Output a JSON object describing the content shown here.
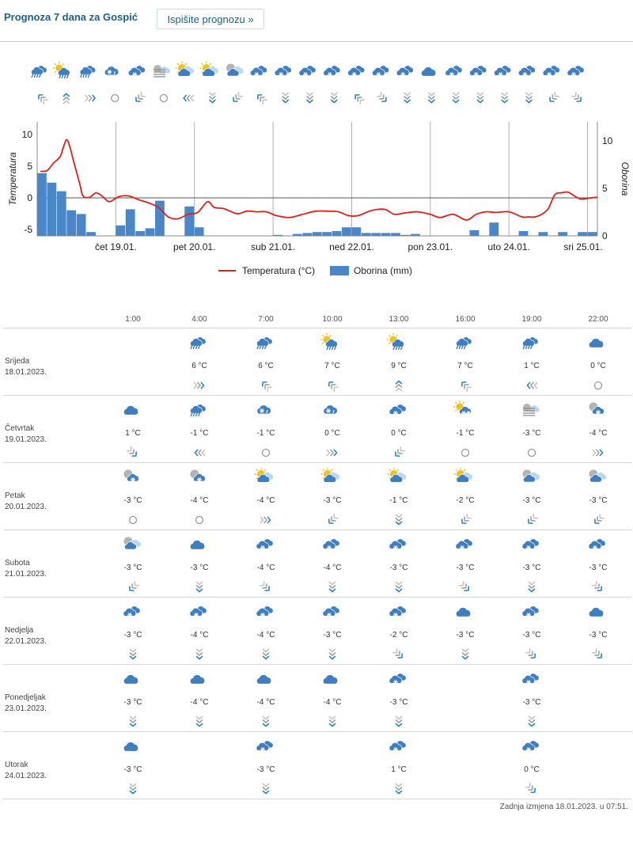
{
  "header": {
    "title": "Prognoza 7 dana za Gospić",
    "button_label": "Ispišite prognozu »"
  },
  "colors": {
    "temperature_line": "#e0201c",
    "precip_bar": "#4a87c8",
    "icon_blue": "#3f7fc1",
    "sun": "#f2c21a",
    "title_blue": "#1d5f8a"
  },
  "strip": {
    "icons": [
      "rain",
      "sun-rain",
      "rain",
      "snow-rain",
      "cloud-snow",
      "fog",
      "sun-cloud",
      "sun-cloud",
      "cloud-cloud",
      "cloud-snow",
      "cloud-snow",
      "cloud-snow",
      "cloud-snow",
      "cloud-snow",
      "cloud-snow",
      "cloud-snow",
      "cloud",
      "cloud-snow",
      "cloud-snow",
      "cloud-snow",
      "cloud-snow",
      "cloud-snow",
      "cloud-snow"
    ],
    "wind": [
      "sw",
      "s",
      "e",
      "calm",
      "nw",
      "calm",
      "w",
      "n",
      "nw",
      "sw",
      "n",
      "n",
      "n",
      "sw",
      "ne",
      "n",
      "n",
      "n",
      "n",
      "n",
      "n",
      "nw",
      "ne"
    ]
  },
  "chart_data": {
    "type": "line",
    "x_labels": [
      "čet 19.01.",
      "pet 20.01.",
      "sub 21.01.",
      "ned 22.01.",
      "pon 23.01.",
      "uto 24.01.",
      "sri 25.01."
    ],
    "ylabel": "Temperatura",
    "y2label": "Oborina",
    "ylim": [
      -6,
      12
    ],
    "y_ticks": [
      10,
      5,
      0,
      -5
    ],
    "y2lim": [
      0,
      12
    ],
    "y2_ticks": [
      10,
      5,
      0
    ],
    "x_start": 0,
    "x_end": 171,
    "day_starts": [
      24,
      48,
      72,
      96,
      120,
      144,
      168
    ],
    "legend": {
      "placement": "bottom"
    },
    "grid": true,
    "series": [
      {
        "name": "Temperatura (°C)",
        "type": "line",
        "points": [
          [
            1,
            4.2
          ],
          [
            3,
            4.3
          ],
          [
            5,
            5.5
          ],
          [
            7,
            6.5
          ],
          [
            8,
            8
          ],
          [
            9,
            9.2
          ],
          [
            10,
            8
          ],
          [
            11,
            6
          ],
          [
            13,
            2.2
          ],
          [
            14,
            0.3
          ],
          [
            16,
            0.1
          ],
          [
            18,
            0.8
          ],
          [
            20,
            0.2
          ],
          [
            22,
            -0.6
          ],
          [
            25,
            0.2
          ],
          [
            28,
            0.3
          ],
          [
            31,
            -0.3
          ],
          [
            34,
            -0.8
          ],
          [
            37,
            -1.5
          ],
          [
            40,
            -3
          ],
          [
            43,
            -3.3
          ],
          [
            46,
            -2.6
          ],
          [
            49,
            -2.3
          ],
          [
            52,
            -0.6
          ],
          [
            54,
            -1.5
          ],
          [
            57,
            -1.7
          ],
          [
            61,
            -2.5
          ],
          [
            64,
            -2.1
          ],
          [
            67,
            -2.2
          ],
          [
            70,
            -2.2
          ],
          [
            73,
            -2.8
          ],
          [
            77,
            -3.1
          ],
          [
            81,
            -2.6
          ],
          [
            85,
            -2.1
          ],
          [
            89,
            -2.1
          ],
          [
            92,
            -2.2
          ],
          [
            95,
            -2.8
          ],
          [
            98,
            -2.8
          ],
          [
            102,
            -2.0
          ],
          [
            106,
            -1.8
          ],
          [
            109,
            -2.6
          ],
          [
            112,
            -2.4
          ],
          [
            116,
            -2.2
          ],
          [
            120,
            -2.6
          ],
          [
            123,
            -3.1
          ],
          [
            127,
            -2.6
          ],
          [
            131,
            -3.5
          ],
          [
            134,
            -2.6
          ],
          [
            137,
            -2.2
          ],
          [
            140,
            -2.3
          ],
          [
            144,
            -2.2
          ],
          [
            148,
            -3.0
          ],
          [
            150,
            -3.0
          ],
          [
            152,
            -3.0
          ],
          [
            154,
            -2.6
          ],
          [
            156,
            -1.7
          ],
          [
            158,
            0.5
          ],
          [
            160,
            0.8
          ],
          [
            162,
            0.9
          ],
          [
            164,
            0.3
          ],
          [
            166,
            -0.2
          ],
          [
            169,
            0.0
          ],
          [
            171,
            0.1
          ]
        ]
      },
      {
        "name": "Oborina (mm)",
        "type": "bar",
        "bars": [
          [
            0,
            3,
            6.6
          ],
          [
            3,
            6,
            5.6
          ],
          [
            6,
            9,
            4.7
          ],
          [
            9,
            12,
            2.7
          ],
          [
            12,
            15,
            2.3
          ],
          [
            15,
            18,
            0.4
          ],
          [
            24,
            27,
            1.1
          ],
          [
            27,
            30,
            2.8
          ],
          [
            30,
            33,
            0.5
          ],
          [
            33,
            36,
            0.8
          ],
          [
            36,
            39,
            3.7
          ],
          [
            45,
            48,
            3.1
          ],
          [
            48,
            51,
            0.9
          ],
          [
            72,
            75,
            0.1
          ],
          [
            78,
            81,
            0.2
          ],
          [
            81,
            84,
            0.3
          ],
          [
            84,
            87,
            0.4
          ],
          [
            87,
            90,
            0.4
          ],
          [
            90,
            93,
            0.5
          ],
          [
            93,
            96,
            0.9
          ],
          [
            96,
            99,
            0.9
          ],
          [
            99,
            102,
            0.3
          ],
          [
            102,
            105,
            0.3
          ],
          [
            105,
            108,
            0.3
          ],
          [
            108,
            111,
            0.3
          ],
          [
            111,
            114,
            0.1
          ],
          [
            114,
            117,
            0.2
          ],
          [
            132,
            135,
            0.6
          ],
          [
            138,
            141,
            1.4
          ],
          [
            147,
            150,
            0.5
          ],
          [
            153,
            156,
            0.4
          ],
          [
            159,
            162,
            0.4
          ],
          [
            165,
            168,
            0.4
          ],
          [
            168,
            171,
            0.4
          ]
        ]
      }
    ]
  },
  "table": {
    "times": [
      "1:00",
      "4:00",
      "7:00",
      "10:00",
      "13:00",
      "16:00",
      "19:00",
      "22:00"
    ],
    "days": [
      {
        "name": "Srijeda",
        "date": "18.01.2023.",
        "cells": [
          null,
          {
            "icon": "rain",
            "temp": "6 °C",
            "wind": "e"
          },
          {
            "icon": "rain",
            "temp": "6 °C",
            "wind": "sw"
          },
          {
            "icon": "sun-rain",
            "temp": "7 °C",
            "wind": "sw"
          },
          {
            "icon": "sun-rain",
            "temp": "9 °C",
            "wind": "s"
          },
          {
            "icon": "rain",
            "temp": "7 °C",
            "wind": "sw"
          },
          {
            "icon": "rain",
            "temp": "1 °C",
            "wind": "w"
          },
          {
            "icon": "cloud",
            "temp": "0 °C",
            "wind": "calm"
          }
        ]
      },
      {
        "name": "Četvrtak",
        "date": "19.01.2023.",
        "cells": [
          {
            "icon": "cloud",
            "temp": "1 °C",
            "wind": "ne"
          },
          {
            "icon": "rain",
            "temp": "-1 °C",
            "wind": "w"
          },
          {
            "icon": "snow-rain",
            "temp": "-1 °C",
            "wind": "calm"
          },
          {
            "icon": "snow-rain",
            "temp": "0 °C",
            "wind": "e"
          },
          {
            "icon": "cloud-snow",
            "temp": "0 °C",
            "wind": "nw"
          },
          {
            "icon": "sun-snow",
            "temp": "-1 °C",
            "wind": "calm"
          },
          {
            "icon": "fog",
            "temp": "-3 °C",
            "wind": "calm"
          },
          {
            "icon": "grey-snow",
            "temp": "-4 °C",
            "wind": "e"
          }
        ]
      },
      {
        "name": "Petak",
        "date": "20.01.2023.",
        "cells": [
          {
            "icon": "grey-snow",
            "temp": "-3 °C",
            "wind": "calm"
          },
          {
            "icon": "grey-snow",
            "temp": "-4 °C",
            "wind": "calm"
          },
          {
            "icon": "sun-cloud",
            "temp": "-4 °C",
            "wind": "e"
          },
          {
            "icon": "sun-cloud",
            "temp": "-3 °C",
            "wind": "nw"
          },
          {
            "icon": "sun-cloud",
            "temp": "-1 °C",
            "wind": "n"
          },
          {
            "icon": "sun-cloud",
            "temp": "-2 °C",
            "wind": "nw"
          },
          {
            "icon": "cloud-cloud",
            "temp": "-3 °C",
            "wind": "nw"
          },
          {
            "icon": "cloud-cloud",
            "temp": "-3 °C",
            "wind": "nw"
          }
        ]
      },
      {
        "name": "Subota",
        "date": "21.01.2023.",
        "cells": [
          {
            "icon": "cloud-cloud",
            "temp": "-3 °C",
            "wind": "nw"
          },
          {
            "icon": "cloud",
            "temp": "-3 °C",
            "wind": "n"
          },
          {
            "icon": "cloud-snow",
            "temp": "-4 °C",
            "wind": "ne"
          },
          {
            "icon": "cloud-snow",
            "temp": "-4 °C",
            "wind": "n"
          },
          {
            "icon": "cloud-snow",
            "temp": "-3 °C",
            "wind": "n"
          },
          {
            "icon": "cloud-snow",
            "temp": "-3 °C",
            "wind": "ne"
          },
          {
            "icon": "cloud-snow",
            "temp": "-3 °C",
            "wind": "n"
          },
          {
            "icon": "cloud-snow",
            "temp": "-3 °C",
            "wind": "ne"
          }
        ]
      },
      {
        "name": "Nedjelja",
        "date": "22.01.2023.",
        "cells": [
          {
            "icon": "cloud-snow",
            "temp": "-3 °C",
            "wind": "n"
          },
          {
            "icon": "cloud-snow",
            "temp": "-4 °C",
            "wind": "n"
          },
          {
            "icon": "cloud-snow",
            "temp": "-4 °C",
            "wind": "n"
          },
          {
            "icon": "cloud-snow",
            "temp": "-3 °C",
            "wind": "n"
          },
          {
            "icon": "cloud-snow",
            "temp": "-2 °C",
            "wind": "ne"
          },
          {
            "icon": "cloud",
            "temp": "-3 °C",
            "wind": "n"
          },
          {
            "icon": "cloud-snow",
            "temp": "-3 °C",
            "wind": "ne"
          },
          {
            "icon": "cloud",
            "temp": "-3 °C",
            "wind": "ne"
          }
        ]
      },
      {
        "name": "Ponedjeljak",
        "date": "23.01.2023.",
        "cells": [
          {
            "icon": "cloud",
            "temp": "-3 °C",
            "wind": "n"
          },
          {
            "icon": "cloud",
            "temp": "-4 °C",
            "wind": "n"
          },
          {
            "icon": "cloud",
            "temp": "-4 °C",
            "wind": "n"
          },
          {
            "icon": "cloud",
            "temp": "-4 °C",
            "wind": "n"
          },
          {
            "icon": "cloud-snow",
            "temp": "-3 °C",
            "wind": "n"
          },
          null,
          {
            "icon": "cloud-snow",
            "temp": "-3 °C",
            "wind": "n"
          },
          null
        ]
      },
      {
        "name": "Utorak",
        "date": "24.01.2023.",
        "cells": [
          {
            "icon": "cloud",
            "temp": "-3 °C",
            "wind": "n"
          },
          null,
          {
            "icon": "cloud-snow",
            "temp": "-3 °C",
            "wind": "n"
          },
          null,
          {
            "icon": "cloud-snow",
            "temp": "1 °C",
            "wind": "n"
          },
          null,
          {
            "icon": "cloud-snow",
            "temp": "0 °C",
            "wind": "ne"
          },
          null
        ]
      }
    ]
  },
  "footer": "Zadnja izmjena 18.01.2023. u 07:51."
}
